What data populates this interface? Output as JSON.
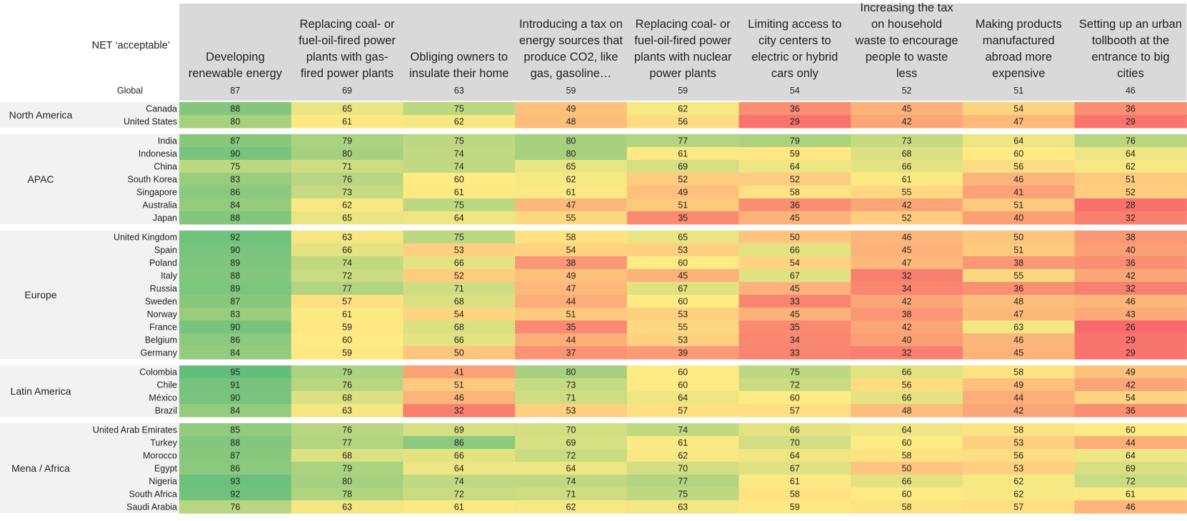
{
  "chart_data": {
    "type": "heatmap",
    "net_label": "NET ‘acceptable’",
    "global_label": "Global",
    "columns": [
      {
        "label": "Developing renewable energy",
        "lines": [
          "Developing",
          "renewable energy"
        ],
        "global": 87
      },
      {
        "label": "Replacing coal- or fuel-oil-fired power plants with gas-fired power plants",
        "lines": [
          "Replacing coal- or",
          "fuel-oil-fired power",
          "plants with gas-",
          "fired power plants"
        ],
        "global": 69
      },
      {
        "label": "Obliging owners to insulate their home",
        "lines": [
          "Obliging owners to",
          "insulate their home"
        ],
        "global": 63
      },
      {
        "label": "Introducing a tax on energy sources that produce CO2, like gas, gasoline...",
        "lines": [
          "Introducing a tax on",
          "energy sources that",
          "produce CO2, like",
          "gas, gasoline…"
        ],
        "global": 59
      },
      {
        "label": "Replacing coal- or fuel-oil-fired power plants with nuclear power plants",
        "lines": [
          "Replacing coal- or",
          "fuel-oil-fired power",
          "plants with nuclear",
          "power plants"
        ],
        "global": 59
      },
      {
        "label": "Limiting access to city centers to electric or hybrid cars only",
        "lines": [
          "Limiting access to",
          "city centers to",
          "electric or hybrid",
          "cars only"
        ],
        "global": 54
      },
      {
        "label": "Increasing the tax on household waste to encourage people to waste less",
        "lines": [
          "Increasing the tax",
          "on household",
          "waste to encourage",
          "people to waste",
          "less"
        ],
        "global": 52
      },
      {
        "label": "Making products manufactured abroad more expensive",
        "lines": [
          "Making products",
          "manufactured",
          "abroad more",
          "expensive"
        ],
        "global": 51
      },
      {
        "label": "Setting up an urban tollbooth at the entrance to big cities",
        "lines": [
          "Setting up an urban",
          "tollbooth at the",
          "entrance to big",
          "cities"
        ],
        "global": 46
      }
    ],
    "regions": [
      {
        "name": "North America",
        "rows": [
          {
            "country": "Canada",
            "values": [
              88,
              65,
              75,
              49,
              62,
              36,
              45,
              54,
              36
            ]
          },
          {
            "country": "United States",
            "values": [
              80,
              61,
              62,
              48,
              56,
              29,
              42,
              47,
              29
            ]
          }
        ]
      },
      {
        "name": "APAC",
        "rows": [
          {
            "country": "India",
            "values": [
              87,
              79,
              75,
              80,
              77,
              79,
              73,
              64,
              76
            ]
          },
          {
            "country": "Indonesia",
            "values": [
              90,
              80,
              74,
              80,
              61,
              59,
              68,
              60,
              64
            ]
          },
          {
            "country": "China",
            "values": [
              75,
              71,
              74,
              65,
              69,
              64,
              66,
              56,
              62
            ]
          },
          {
            "country": "South Korea",
            "values": [
              83,
              76,
              60,
              62,
              52,
              52,
              61,
              46,
              51
            ]
          },
          {
            "country": "Singapore",
            "values": [
              86,
              73,
              61,
              61,
              49,
              58,
              55,
              41,
              52
            ]
          },
          {
            "country": "Australia",
            "values": [
              84,
              62,
              75,
              47,
              51,
              36,
              42,
              51,
              28
            ]
          },
          {
            "country": "Japan",
            "values": [
              88,
              65,
              64,
              55,
              35,
              45,
              52,
              40,
              32
            ]
          }
        ]
      },
      {
        "name": "Europe",
        "rows": [
          {
            "country": "United Kingdom",
            "values": [
              92,
              63,
              75,
              58,
              65,
              50,
              46,
              50,
              38
            ]
          },
          {
            "country": "Spain",
            "values": [
              90,
              66,
              53,
              54,
              53,
              66,
              45,
              51,
              40
            ]
          },
          {
            "country": "Poland",
            "values": [
              89,
              74,
              66,
              38,
              60,
              54,
              47,
              38,
              36
            ]
          },
          {
            "country": "Italy",
            "values": [
              88,
              72,
              52,
              49,
              45,
              67,
              32,
              55,
              42
            ]
          },
          {
            "country": "Russia",
            "values": [
              89,
              77,
              71,
              47,
              67,
              45,
              34,
              36,
              32
            ]
          },
          {
            "country": "Sweden",
            "values": [
              87,
              57,
              68,
              44,
              60,
              33,
              42,
              48,
              46
            ]
          },
          {
            "country": "Norway",
            "values": [
              83,
              61,
              54,
              51,
              53,
              45,
              38,
              47,
              43
            ]
          },
          {
            "country": "France",
            "values": [
              90,
              59,
              68,
              35,
              55,
              35,
              42,
              63,
              26
            ]
          },
          {
            "country": "Belgium",
            "values": [
              86,
              60,
              66,
              44,
              53,
              34,
              40,
              46,
              29
            ]
          },
          {
            "country": "Germany",
            "values": [
              84,
              59,
              50,
              37,
              39,
              33,
              32,
              45,
              29
            ]
          }
        ]
      },
      {
        "name": "Latin America",
        "rows": [
          {
            "country": "Colombia",
            "values": [
              95,
              79,
              41,
              80,
              60,
              75,
              66,
              58,
              49
            ]
          },
          {
            "country": "Chile",
            "values": [
              91,
              76,
              51,
              73,
              60,
              72,
              56,
              49,
              42
            ]
          },
          {
            "country": "México",
            "values": [
              90,
              68,
              46,
              71,
              64,
              60,
              66,
              44,
              54
            ]
          },
          {
            "country": "Brazil",
            "values": [
              84,
              63,
              32,
              53,
              57,
              57,
              48,
              42,
              36
            ]
          }
        ]
      },
      {
        "name": "Mena / Africa",
        "rows": [
          {
            "country": "United Arab Emirates",
            "values": [
              85,
              76,
              69,
              70,
              74,
              66,
              64,
              58,
              60
            ]
          },
          {
            "country": "Turkey",
            "values": [
              88,
              77,
              86,
              69,
              61,
              70,
              60,
              53,
              44
            ]
          },
          {
            "country": "Morocco",
            "values": [
              87,
              68,
              66,
              72,
              62,
              64,
              58,
              56,
              64
            ]
          },
          {
            "country": "Egypt",
            "values": [
              86,
              79,
              64,
              64,
              70,
              67,
              50,
              53,
              69
            ]
          },
          {
            "country": "Nigeria",
            "values": [
              93,
              80,
              74,
              74,
              77,
              61,
              66,
              62,
              72
            ]
          },
          {
            "country": "South Africa",
            "values": [
              92,
              78,
              72,
              71,
              75,
              58,
              60,
              62,
              61
            ]
          },
          {
            "country": "Saudi Arabia",
            "values": [
              76,
              63,
              61,
              62,
              63,
              59,
              58,
              57,
              46
            ]
          }
        ]
      }
    ],
    "color_scale": {
      "low": "#f8696b",
      "mid": "#ffeb84",
      "high": "#63be7b"
    },
    "colors": {
      "header_bg": "#d9d9d9",
      "region_bg": "#f2f2f2"
    },
    "legend": "none",
    "grid": false
  }
}
